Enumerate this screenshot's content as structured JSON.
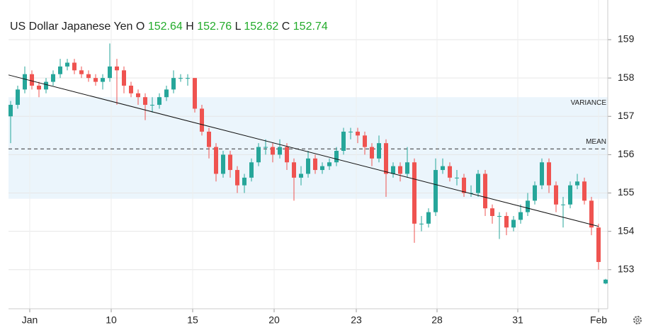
{
  "chart_data": {
    "type": "candlestick",
    "title": "US Dollar Japanese Yen",
    "ohlc_labels": [
      "O",
      "H",
      "L",
      "C"
    ],
    "x": [
      0,
      1,
      2,
      3,
      4,
      5,
      6,
      7,
      8,
      9,
      10,
      11,
      12,
      13,
      14,
      15,
      16,
      17,
      18,
      19,
      20,
      21,
      22,
      23,
      24,
      25,
      26,
      27,
      28,
      29,
      30,
      31,
      32,
      33,
      34,
      35,
      36,
      37,
      38,
      39,
      40,
      41,
      42,
      43,
      44,
      45,
      46,
      47,
      48,
      49,
      50,
      51,
      52,
      53,
      54,
      55,
      56,
      57,
      58,
      59,
      60,
      61,
      62,
      63,
      64,
      65,
      66,
      67,
      68,
      69,
      70,
      71,
      72,
      73,
      74,
      75,
      76,
      77,
      78,
      79,
      80,
      81,
      82,
      83,
      84
    ],
    "open": [
      157.0,
      157.3,
      157.7,
      158.1,
      157.8,
      157.7,
      157.9,
      158.1,
      158.3,
      158.4,
      158.2,
      158.1,
      158.0,
      157.9,
      158.0,
      158.3,
      158.2,
      157.8,
      157.6,
      157.5,
      157.3,
      157.3,
      157.5,
      157.7,
      158.0,
      158.0,
      158.0,
      157.2,
      156.6,
      156.2,
      155.5,
      156.0,
      155.6,
      155.2,
      155.4,
      155.8,
      156.2,
      156.2,
      156.0,
      156.2,
      155.8,
      155.4,
      155.5,
      155.9,
      155.6,
      155.7,
      155.8,
      156.1,
      156.6,
      156.6,
      156.5,
      156.2,
      155.9,
      156.3,
      155.5,
      155.7,
      155.5,
      155.8,
      154.2,
      154.2,
      154.5,
      155.6,
      155.7,
      155.4,
      155.4,
      155.0,
      155.0,
      155.5,
      154.6,
      154.4,
      154.4,
      154.1,
      154.3,
      154.5,
      154.8,
      155.2,
      155.8,
      155.2,
      154.7,
      154.7,
      155.2,
      155.3,
      154.8,
      154.1,
      152.64
    ],
    "high": [
      157.4,
      157.8,
      158.3,
      158.2,
      157.9,
      158.0,
      158.2,
      158.5,
      158.5,
      158.5,
      158.3,
      158.2,
      158.1,
      158.1,
      158.9,
      158.5,
      158.3,
      157.9,
      157.7,
      157.6,
      157.5,
      157.6,
      157.8,
      158.2,
      158.1,
      158.1,
      158.0,
      157.3,
      156.7,
      156.3,
      156.1,
      156.1,
      155.7,
      155.5,
      155.9,
      156.3,
      156.4,
      156.3,
      156.4,
      156.3,
      155.9,
      155.7,
      156.1,
      156.0,
      155.8,
      155.9,
      156.2,
      156.7,
      156.7,
      156.7,
      156.6,
      156.3,
      156.5,
      156.4,
      155.8,
      155.8,
      156.2,
      155.9,
      154.4,
      154.6,
      155.9,
      155.9,
      155.8,
      155.6,
      155.5,
      155.2,
      155.6,
      155.6,
      154.7,
      154.5,
      154.5,
      154.4,
      154.7,
      155.0,
      155.3,
      155.9,
      155.9,
      155.3,
      154.9,
      155.3,
      155.5,
      155.4,
      154.9,
      154.2,
      152.76
    ],
    "low": [
      156.3,
      157.2,
      157.6,
      157.7,
      157.5,
      157.6,
      157.8,
      158.0,
      158.2,
      158.1,
      158.0,
      157.9,
      157.8,
      157.7,
      157.9,
      157.3,
      157.6,
      157.5,
      157.3,
      156.9,
      157.1,
      157.2,
      157.4,
      157.6,
      157.9,
      157.8,
      157.1,
      156.5,
      155.9,
      155.3,
      155.4,
      155.4,
      155.0,
      155.0,
      155.3,
      155.7,
      156.0,
      155.8,
      155.9,
      155.6,
      154.8,
      155.2,
      155.4,
      155.5,
      155.5,
      155.6,
      155.7,
      156.0,
      156.4,
      156.3,
      156.0,
      155.7,
      155.8,
      154.9,
      155.4,
      155.3,
      155.4,
      153.7,
      154.0,
      154.1,
      154.4,
      155.5,
      155.3,
      155.2,
      154.9,
      154.9,
      154.9,
      154.4,
      154.2,
      153.8,
      153.9,
      154.0,
      154.2,
      154.4,
      154.7,
      155.1,
      155.0,
      154.5,
      154.1,
      154.6,
      155.1,
      154.7,
      153.9,
      153.0,
      152.62
    ],
    "close": [
      157.3,
      157.7,
      158.1,
      157.8,
      157.7,
      157.9,
      158.1,
      158.3,
      158.4,
      158.2,
      158.1,
      158.0,
      157.9,
      158.0,
      158.3,
      158.2,
      157.8,
      157.6,
      157.5,
      157.3,
      157.3,
      157.5,
      157.7,
      158.0,
      158.0,
      158.0,
      157.2,
      156.6,
      156.2,
      155.5,
      156.0,
      155.6,
      155.2,
      155.4,
      155.8,
      156.2,
      156.2,
      156.0,
      156.2,
      155.8,
      155.4,
      155.5,
      155.9,
      155.6,
      155.7,
      155.8,
      156.1,
      156.6,
      156.6,
      156.5,
      156.2,
      155.9,
      156.3,
      155.5,
      155.7,
      155.5,
      155.8,
      154.2,
      154.2,
      154.5,
      155.6,
      155.7,
      155.4,
      155.4,
      155.0,
      155.0,
      155.5,
      154.6,
      154.4,
      154.4,
      154.1,
      154.3,
      154.5,
      154.8,
      155.2,
      155.8,
      155.2,
      154.7,
      154.7,
      155.2,
      155.3,
      154.8,
      154.1,
      153.2,
      152.74
    ],
    "up_color": "#26a69a",
    "down_color": "#ef5350",
    "xlim": [
      -0.3,
      84.3
    ],
    "xticks": [
      {
        "value": 2.7,
        "label": "Jan"
      },
      {
        "value": 14.2,
        "label": "10"
      },
      {
        "value": 25.7,
        "label": "15"
      },
      {
        "value": 37.2,
        "label": "20"
      },
      {
        "value": 48.8,
        "label": "23"
      },
      {
        "value": 60.2,
        "label": "28"
      },
      {
        "value": 71.6,
        "label": "31"
      },
      {
        "value": 83,
        "label": "Feb"
      }
    ],
    "ylim": [
      151.98,
      159.85
    ],
    "yticks": [
      153,
      154,
      155,
      156,
      157,
      158,
      159
    ],
    "grid": true,
    "variance_band": {
      "label": "VARIANCE",
      "range": [
        154.85,
        157.5
      ]
    },
    "mean_line": {
      "label": "MEAN",
      "value": 156.15
    },
    "trendline": {
      "x": [
        -0.3,
        83.0
      ],
      "y": [
        158.08,
        154.13
      ]
    }
  }
}
